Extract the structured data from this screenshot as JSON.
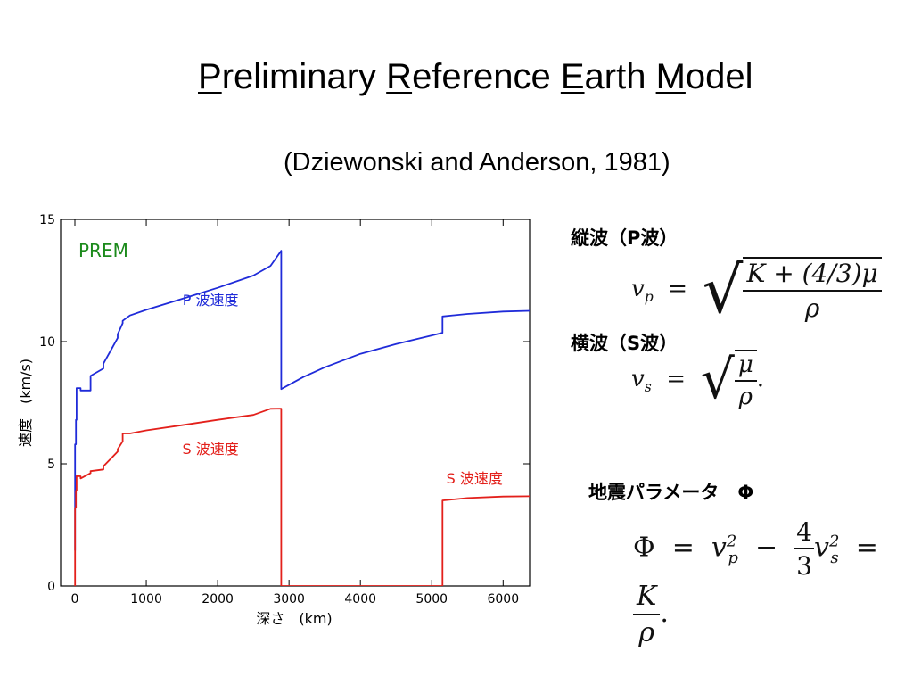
{
  "title": {
    "parts": [
      {
        "u": "P",
        "rest": "reliminary "
      },
      {
        "u": "R",
        "rest": "eference "
      },
      {
        "u": "E",
        "rest": "arth "
      },
      {
        "u": "M",
        "rest": "odel"
      }
    ]
  },
  "subtitle": "(Dziewonski and Anderson, 1981)",
  "chart_data": {
    "type": "line",
    "legend_label": "PREM",
    "xlabel": "深さ　(km)",
    "ylabel": "速度　(km/s)",
    "xlim": [
      -200,
      6371
    ],
    "ylim": [
      0,
      15
    ],
    "xticks": [
      0,
      1000,
      2000,
      3000,
      4000,
      5000,
      6000
    ],
    "yticks": [
      0,
      5,
      10,
      15
    ],
    "colors": {
      "p": "#1f2bd9",
      "s": "#e3201b",
      "legend": "#1b8a1b"
    },
    "series": [
      {
        "name": "P 波速度",
        "key": "p",
        "x": [
          0,
          3,
          3,
          15,
          15,
          24,
          24,
          80,
          80,
          220,
          220,
          400,
          400,
          600,
          600,
          670,
          670,
          771,
          1000,
          1500,
          2000,
          2500,
          2741,
          2891,
          2891,
          3200,
          3500,
          4000,
          4500,
          5000,
          5150,
          5150,
          5500,
          6000,
          6371
        ],
        "y": [
          1.45,
          1.45,
          5.8,
          5.8,
          6.8,
          6.8,
          8.1,
          8.1,
          8.0,
          8.0,
          8.6,
          8.9,
          9.1,
          10.15,
          10.3,
          10.75,
          10.85,
          11.07,
          11.3,
          11.75,
          12.2,
          12.7,
          13.1,
          13.72,
          8.06,
          8.55,
          8.95,
          9.5,
          9.9,
          10.25,
          10.36,
          11.03,
          11.13,
          11.23,
          11.26
        ]
      },
      {
        "name": "S 波速度",
        "key": "s",
        "x": [
          0,
          3,
          3,
          15,
          15,
          24,
          24,
          80,
          80,
          220,
          220,
          400,
          400,
          600,
          600,
          670,
          670,
          771,
          1000,
          1500,
          2000,
          2500,
          2741,
          2891,
          2891,
          5150,
          5150,
          5500,
          6000,
          6371
        ],
        "y": [
          0,
          0,
          3.2,
          3.2,
          3.9,
          3.9,
          4.5,
          4.49,
          4.4,
          4.62,
          4.7,
          4.77,
          4.9,
          5.5,
          5.6,
          5.92,
          6.24,
          6.24,
          6.37,
          6.58,
          6.8,
          7.0,
          7.25,
          7.26,
          0,
          0,
          3.5,
          3.6,
          3.66,
          3.67
        ]
      }
    ],
    "annotations": [
      {
        "text": "P 波速度",
        "x": 1900,
        "y": 11.5,
        "key": "p"
      },
      {
        "text": "S 波速度",
        "x": 1900,
        "y": 5.4,
        "key": "s"
      },
      {
        "text": "S 波速度",
        "x": 5600,
        "y": 4.2,
        "key": "s"
      }
    ]
  },
  "right_panel": {
    "p_wave_label": "縦波（P波）",
    "s_wave_label": "横波（S波）",
    "phi_label": "地震パラメータ　Φ",
    "eq_vp": {
      "lhs": "v",
      "lhs_sub": "p",
      "num": "K + (4/3)μ",
      "den": "ρ"
    },
    "eq_vs": {
      "lhs": "v",
      "lhs_sub": "s",
      "num": "μ",
      "den": "ρ",
      "tail": "."
    },
    "eq_phi": {
      "phi": "Φ",
      "v": "v",
      "p": "p",
      "s": "s",
      "sq": "2",
      "frac_num": "4",
      "frac_den": "3",
      "k_num": "K",
      "k_den": "ρ",
      "tail": "."
    }
  }
}
